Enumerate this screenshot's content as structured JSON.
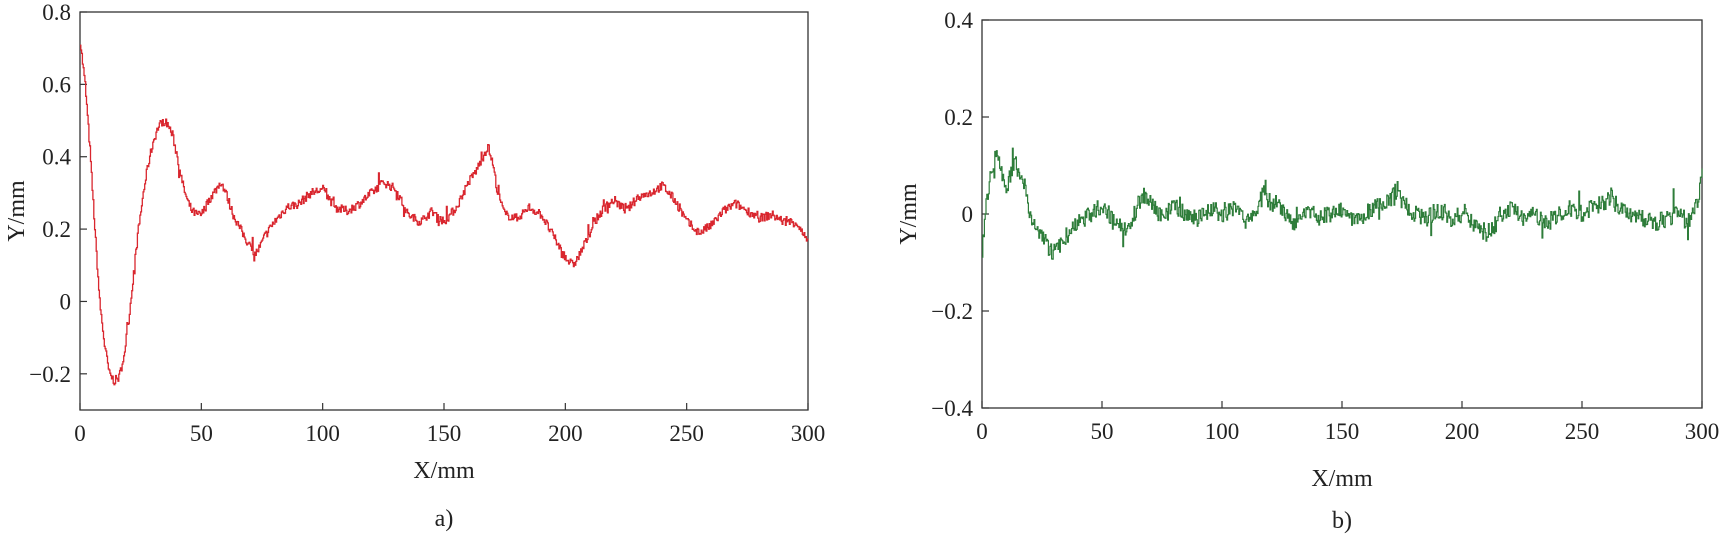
{
  "chart_data": [
    {
      "id": "a",
      "type": "line",
      "caption": "a)",
      "xlabel": "X/mm",
      "ylabel": "Y/mm",
      "xlim": [
        0,
        300
      ],
      "ylim": [
        -0.3,
        0.8
      ],
      "xticks": [
        0,
        50,
        100,
        150,
        200,
        250,
        300
      ],
      "yticks": [
        -0.2,
        0,
        0.2,
        0.4,
        0.6,
        0.8
      ],
      "xtick_labels": [
        "0",
        "50",
        "100",
        "150",
        "200",
        "250",
        "300"
      ],
      "ytick_labels": [
        "−0.2",
        "0",
        "0.2",
        "0.4",
        "0.6",
        "0.8"
      ],
      "grid": false,
      "noise": 0.012,
      "color": "#d9262e",
      "series": [
        {
          "x": [
            0,
            2,
            4,
            6,
            8,
            10,
            12,
            14,
            16,
            18,
            20,
            22,
            24,
            26,
            28,
            30,
            32,
            34,
            36,
            38,
            40,
            42,
            44,
            46,
            48,
            50,
            53,
            56,
            58,
            60,
            63,
            66,
            70,
            72,
            74,
            76,
            80,
            85,
            90,
            95,
            100,
            105,
            110,
            115,
            120,
            125,
            130,
            135,
            140,
            145,
            150,
            155,
            160,
            163,
            166,
            168,
            170,
            172,
            175,
            180,
            185,
            190,
            195,
            200,
            203,
            205,
            208,
            212,
            216,
            220,
            225,
            230,
            235,
            240,
            245,
            250,
            255,
            260,
            265,
            270,
            275,
            280,
            285,
            290,
            295,
            300
          ],
          "y": [
            0.72,
            0.6,
            0.42,
            0.2,
            0.0,
            -0.12,
            -0.2,
            -0.22,
            -0.21,
            -0.15,
            -0.05,
            0.08,
            0.2,
            0.3,
            0.38,
            0.44,
            0.48,
            0.5,
            0.49,
            0.46,
            0.4,
            0.33,
            0.28,
            0.25,
            0.24,
            0.24,
            0.28,
            0.31,
            0.33,
            0.3,
            0.24,
            0.2,
            0.15,
            0.13,
            0.15,
            0.18,
            0.22,
            0.26,
            0.27,
            0.3,
            0.31,
            0.26,
            0.25,
            0.27,
            0.3,
            0.33,
            0.31,
            0.24,
            0.22,
            0.25,
            0.22,
            0.26,
            0.33,
            0.36,
            0.4,
            0.43,
            0.38,
            0.3,
            0.24,
            0.23,
            0.26,
            0.24,
            0.18,
            0.12,
            0.1,
            0.12,
            0.16,
            0.22,
            0.26,
            0.28,
            0.25,
            0.29,
            0.3,
            0.32,
            0.28,
            0.22,
            0.19,
            0.21,
            0.25,
            0.27,
            0.25,
            0.23,
            0.24,
            0.22,
            0.22,
            0.16
          ]
        }
      ]
    },
    {
      "id": "b",
      "type": "line",
      "caption": "b)",
      "xlabel": "X/mm",
      "ylabel": "Y/mm",
      "xlim": [
        0,
        300
      ],
      "ylim": [
        -0.4,
        0.4
      ],
      "xticks": [
        0,
        50,
        100,
        150,
        200,
        250,
        300
      ],
      "yticks": [
        -0.4,
        -0.2,
        0,
        0.2,
        0.4
      ],
      "xtick_labels": [
        "0",
        "50",
        "100",
        "150",
        "200",
        "250",
        "300"
      ],
      "ytick_labels": [
        "−0.4",
        "−0.2",
        "0",
        "0.2",
        "0.4"
      ],
      "grid": false,
      "noise": 0.018,
      "color": "#2e7d3a",
      "series": [
        {
          "x": [
            0,
            2,
            4,
            6,
            8,
            10,
            12,
            14,
            16,
            18,
            20,
            22,
            25,
            28,
            30,
            33,
            36,
            40,
            45,
            50,
            55,
            60,
            65,
            68,
            70,
            75,
            80,
            85,
            90,
            95,
            100,
            105,
            110,
            115,
            118,
            120,
            123,
            126,
            130,
            135,
            140,
            145,
            150,
            155,
            160,
            165,
            170,
            173,
            176,
            180,
            185,
            190,
            195,
            200,
            205,
            210,
            213,
            216,
            220,
            225,
            230,
            235,
            240,
            245,
            250,
            255,
            260,
            262,
            265,
            270,
            275,
            280,
            285,
            290,
            295,
            298,
            300
          ],
          "y": [
            -0.06,
            0.03,
            0.1,
            0.12,
            0.08,
            0.05,
            0.09,
            0.1,
            0.08,
            0.05,
            0.0,
            -0.03,
            -0.05,
            -0.07,
            -0.08,
            -0.06,
            -0.04,
            -0.02,
            0.0,
            0.02,
            -0.02,
            -0.03,
            0.02,
            0.04,
            0.02,
            -0.01,
            0.02,
            0.0,
            -0.01,
            0.01,
            0.0,
            0.01,
            -0.02,
            0.02,
            0.06,
            0.02,
            0.03,
            0.0,
            -0.02,
            0.01,
            -0.01,
            0.0,
            0.01,
            -0.01,
            0.0,
            0.02,
            0.03,
            0.05,
            0.02,
            0.0,
            -0.01,
            0.01,
            -0.01,
            0.0,
            -0.02,
            -0.04,
            -0.03,
            0.0,
            0.01,
            -0.01,
            0.0,
            -0.02,
            0.0,
            0.01,
            0.0,
            0.02,
            0.02,
            0.04,
            0.01,
            0.0,
            -0.01,
            -0.02,
            -0.01,
            0.0,
            -0.02,
            0.03,
            0.08
          ]
        }
      ]
    }
  ]
}
